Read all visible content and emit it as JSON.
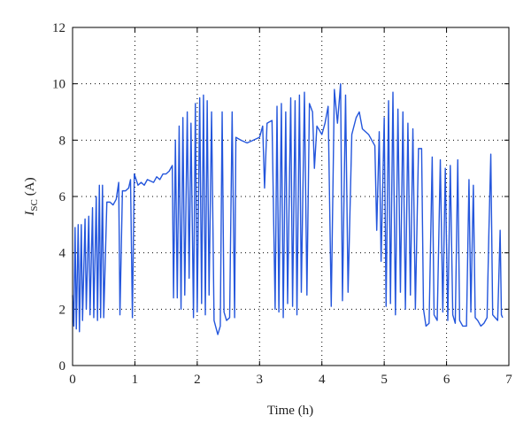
{
  "chart_data": {
    "type": "line",
    "xlabel": "Time (h)",
    "ylabel": {
      "symbol": "I",
      "subscript": "SC",
      "unit": "(A)"
    },
    "x": [
      0,
      0.02,
      0.04,
      0.06,
      0.09,
      0.11,
      0.14,
      0.16,
      0.2,
      0.22,
      0.26,
      0.28,
      0.32,
      0.34,
      0.38,
      0.4,
      0.43,
      0.45,
      0.48,
      0.5,
      0.55,
      0.6,
      0.65,
      0.7,
      0.74,
      0.76,
      0.8,
      0.85,
      0.9,
      0.93,
      0.96,
      0.99,
      1.05,
      1.1,
      1.15,
      1.2,
      1.3,
      1.35,
      1.4,
      1.45,
      1.5,
      1.55,
      1.6,
      1.62,
      1.65,
      1.68,
      1.71,
      1.74,
      1.77,
      1.8,
      1.84,
      1.87,
      1.9,
      1.94,
      1.97,
      2.0,
      2.04,
      2.07,
      2.1,
      2.13,
      2.16,
      2.19,
      2.23,
      2.27,
      2.33,
      2.37,
      2.4,
      2.43,
      2.47,
      2.52,
      2.56,
      2.6,
      2.62,
      2.7,
      2.8,
      2.9,
      3.0,
      3.05,
      3.08,
      3.12,
      3.2,
      3.25,
      3.28,
      3.31,
      3.35,
      3.38,
      3.42,
      3.45,
      3.5,
      3.53,
      3.57,
      3.6,
      3.64,
      3.67,
      3.72,
      3.76,
      3.8,
      3.85,
      3.88,
      3.92,
      4.0,
      4.05,
      4.1,
      4.15,
      4.2,
      4.25,
      4.3,
      4.33,
      4.38,
      4.42,
      4.48,
      4.55,
      4.6,
      4.65,
      4.75,
      4.85,
      4.88,
      4.92,
      4.95,
      5.0,
      5.03,
      5.07,
      5.1,
      5.14,
      5.18,
      5.22,
      5.26,
      5.3,
      5.34,
      5.38,
      5.42,
      5.46,
      5.5,
      5.55,
      5.6,
      5.63,
      5.67,
      5.72,
      5.77,
      5.8,
      5.85,
      5.9,
      5.94,
      5.98,
      6.02,
      6.06,
      6.1,
      6.14,
      6.18,
      6.21,
      6.26,
      6.32,
      6.36,
      6.39,
      6.43,
      6.46,
      6.5,
      6.55,
      6.6,
      6.65,
      6.68,
      6.71,
      6.74,
      6.78,
      6.82,
      6.86,
      6.88,
      6.9
    ],
    "series": [
      {
        "color": "#2456dc",
        "values": [
          2.5,
          1.4,
          4.9,
          1.3,
          5.0,
          1.2,
          5.0,
          1.6,
          5.2,
          2.0,
          5.3,
          1.8,
          5.6,
          1.7,
          6.0,
          1.6,
          6.4,
          1.7,
          6.4,
          1.7,
          5.8,
          5.8,
          5.7,
          5.9,
          6.5,
          1.8,
          6.2,
          6.2,
          6.3,
          6.6,
          1.7,
          6.8,
          6.4,
          6.5,
          6.4,
          6.6,
          6.5,
          6.7,
          6.6,
          6.8,
          6.8,
          6.9,
          7.1,
          2.4,
          8.0,
          2.4,
          8.5,
          2.0,
          8.8,
          2.5,
          9.0,
          3.1,
          8.6,
          1.7,
          9.3,
          1.9,
          9.5,
          2.2,
          9.6,
          1.8,
          9.4,
          2.5,
          9.0,
          1.6,
          1.1,
          1.4,
          9.0,
          1.9,
          1.6,
          1.7,
          9.0,
          1.7,
          8.1,
          8.0,
          7.9,
          8.0,
          8.1,
          8.5,
          6.3,
          8.6,
          8.7,
          2.0,
          9.2,
          1.9,
          9.3,
          1.7,
          9.0,
          2.2,
          9.5,
          2.1,
          9.4,
          1.8,
          9.6,
          2.6,
          9.7,
          2.5,
          9.3,
          9.0,
          7.0,
          8.5,
          8.2,
          8.6,
          9.2,
          2.1,
          9.8,
          8.6,
          10.0,
          2.3,
          9.6,
          2.6,
          8.2,
          8.8,
          9.0,
          8.4,
          8.2,
          7.8,
          4.8,
          8.3,
          3.7,
          8.8,
          2.1,
          9.4,
          2.2,
          9.7,
          1.8,
          9.1,
          2.6,
          9.0,
          2.0,
          8.6,
          2.5,
          8.4,
          2.0,
          7.7,
          7.7,
          2.0,
          1.4,
          1.5,
          7.4,
          1.8,
          1.6,
          7.3,
          1.9,
          7.0,
          1.6,
          7.1,
          1.8,
          1.5,
          7.3,
          1.6,
          1.4,
          1.4,
          6.6,
          1.9,
          6.4,
          1.7,
          1.6,
          1.4,
          1.5,
          1.7,
          4.8,
          7.5,
          1.8,
          1.7,
          1.6,
          4.8,
          1.8,
          1.7
        ]
      }
    ],
    "xlim": [
      0,
      7
    ],
    "xticks": [
      0,
      1,
      2,
      3,
      4,
      5,
      6,
      7
    ],
    "ylim": [
      0,
      12
    ],
    "yticks": [
      0,
      2,
      4,
      6,
      8,
      10,
      12
    ],
    "grid": true
  }
}
